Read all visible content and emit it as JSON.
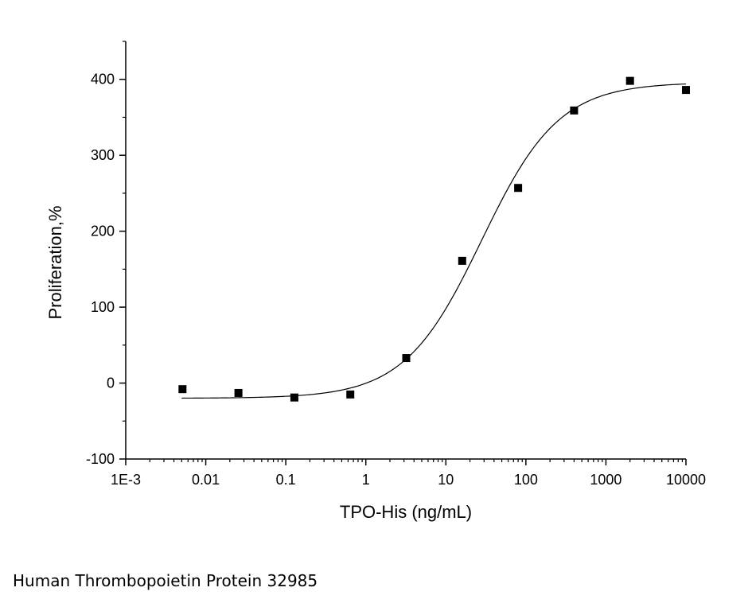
{
  "chart_data": {
    "type": "scatter",
    "xlabel": "TPO-His (ng/mL)",
    "ylabel": "Proliferation,%",
    "x_scale": "log",
    "xlim": [
      0.001,
      10000
    ],
    "ylim": [
      -100,
      450
    ],
    "x_ticks": [
      0.001,
      0.01,
      0.1,
      1,
      10,
      100,
      1000,
      10000
    ],
    "x_tick_labels": [
      "1E-3",
      "0.01",
      "0.1",
      "1",
      "10",
      "100",
      "1000",
      "10000"
    ],
    "y_ticks": [
      -100,
      0,
      100,
      200,
      300,
      400
    ],
    "y_tick_labels": [
      "-100",
      "0",
      "100",
      "200",
      "300",
      "400"
    ],
    "grid": false,
    "series": [
      {
        "marker": "square",
        "color": "#000000",
        "x": [
          0.00512,
          0.0256,
          0.128,
          0.64,
          3.2,
          16,
          80,
          400,
          2000,
          10000
        ],
        "y": [
          -8,
          -13,
          -19,
          -15,
          33,
          161,
          257,
          359,
          398,
          386
        ]
      }
    ],
    "fit_curve": {
      "model": "4PL",
      "bottom": -20,
      "top": 396,
      "ec50": 28,
      "hill": 0.9,
      "x_range": [
        0.005,
        10000
      ],
      "color": "#000000"
    }
  },
  "caption": "Human Thrombopoietin Protein 32985"
}
